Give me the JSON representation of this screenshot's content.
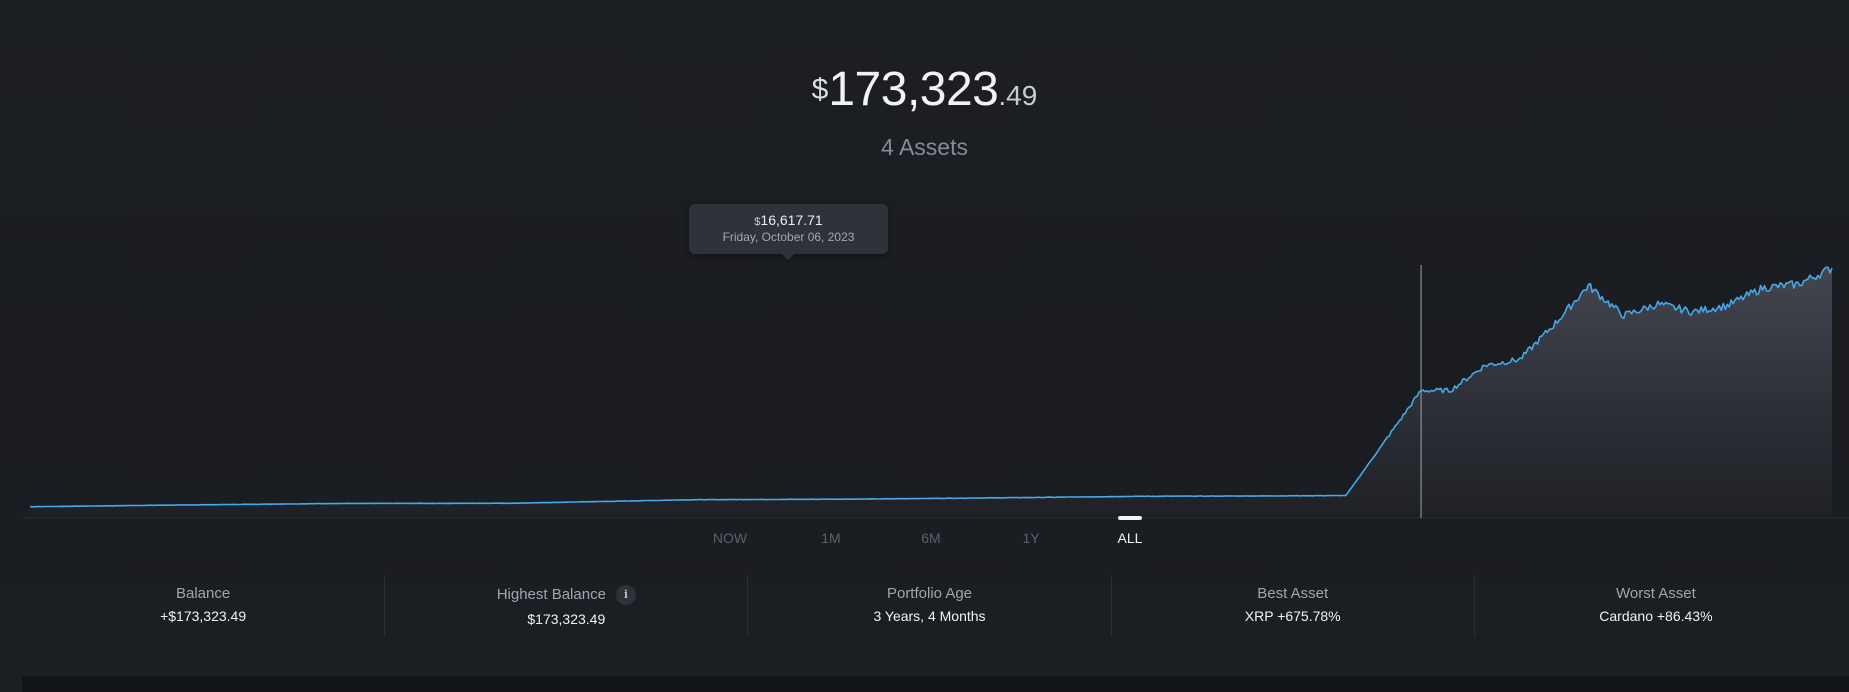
{
  "header": {
    "balance_currency": "$",
    "balance_whole": "173,323",
    "balance_cents": ".49",
    "asset_count": "4 Assets"
  },
  "chart_data": {
    "type": "area",
    "title": "",
    "xlabel": "",
    "ylabel": "",
    "x_range": [
      "2020-06",
      "2024-10"
    ],
    "ylim": [
      0,
      33000
    ],
    "grid": false,
    "line_color": "#46a8e8",
    "points": [
      {
        "x": "2020-06",
        "y": 1470
      },
      {
        "x": "2020-10",
        "y": 1680
      },
      {
        "x": "2021-03",
        "y": 1900
      },
      {
        "x": "2021-08",
        "y": 1930
      },
      {
        "x": "2022-01",
        "y": 2380
      },
      {
        "x": "2022-06",
        "y": 2470
      },
      {
        "x": "2022-11",
        "y": 2680
      },
      {
        "x": "2023-02",
        "y": 2830
      },
      {
        "x": "2023-05",
        "y": 2870
      },
      {
        "x": "2023-08",
        "y": 2930
      },
      {
        "x": "2023-10-06",
        "y": 16617.71
      },
      {
        "x": "2023-11",
        "y": 16650
      },
      {
        "x": "2023-12",
        "y": 19900
      },
      {
        "x": "2024-01",
        "y": 20700
      },
      {
        "x": "2024-02",
        "y": 25400
      },
      {
        "x": "2024-03",
        "y": 30300
      },
      {
        "x": "2024-04",
        "y": 26400
      },
      {
        "x": "2024-05",
        "y": 27900
      },
      {
        "x": "2024-06",
        "y": 26900
      },
      {
        "x": "2024-07",
        "y": 27700
      },
      {
        "x": "2024-08",
        "y": 30000
      },
      {
        "x": "2024-09",
        "y": 30500
      },
      {
        "x": "2024-10",
        "y": 32600
      }
    ],
    "tooltip": {
      "currency": "$",
      "value": "16,617.71",
      "date": "Friday, October 06, 2023"
    }
  },
  "range_selector": {
    "tabs": [
      "NOW",
      "1M",
      "6M",
      "1Y",
      "ALL"
    ],
    "active": "ALL"
  },
  "stats": [
    {
      "label": "Balance",
      "value": "+$173,323.49"
    },
    {
      "label": "Highest Balance",
      "value": "$173,323.49",
      "info_icon": "info-icon"
    },
    {
      "label": "Portfolio Age",
      "value": "3 Years, 4 Months"
    },
    {
      "label": "Best Asset",
      "value": "XRP +675.78%"
    },
    {
      "label": "Worst Asset",
      "value": "Cardano +86.43%"
    }
  ],
  "colors": {
    "background": "#1b1e23",
    "line": "#46a8e8",
    "tooltip_bg": "#2f3239",
    "muted_text": "#868b94"
  }
}
